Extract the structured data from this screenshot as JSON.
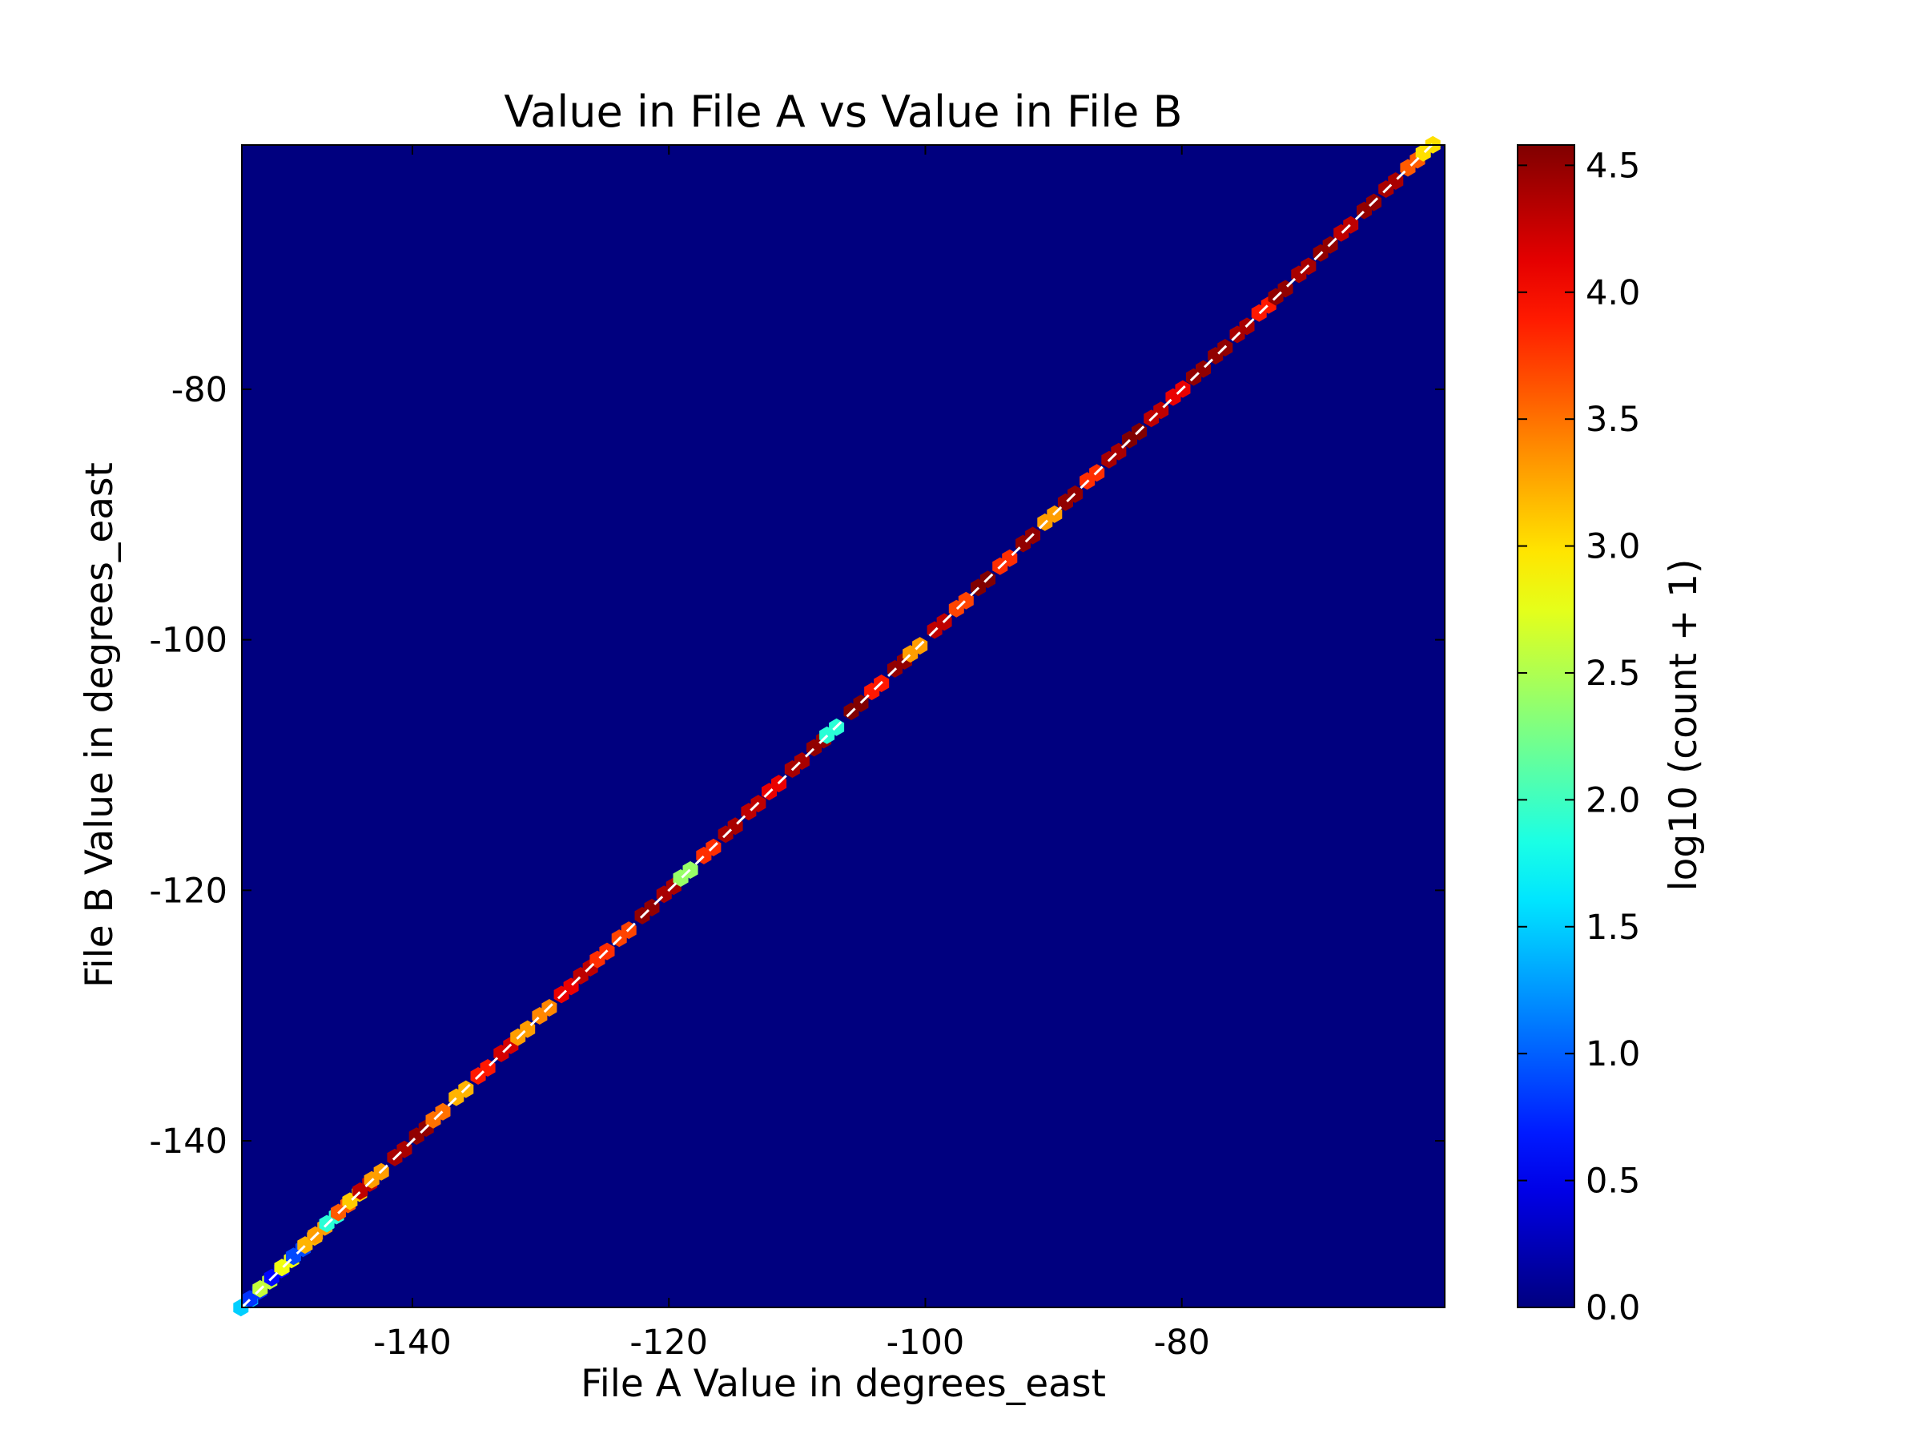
{
  "chart_data": {
    "type": "heatmap",
    "subtype": "hexbin",
    "title": "Value in File A vs Value in File B",
    "xlabel": "File A Value in degrees_east",
    "ylabel": "File B Value in degrees_east",
    "xlim": [
      -153.3,
      -59.5
    ],
    "ylim": [
      -153.3,
      -60.5
    ],
    "xticks": [
      -140,
      -120,
      -100,
      -80
    ],
    "yticks": [
      -140,
      -120,
      -100,
      -80
    ],
    "grid": false,
    "background_color": "#00007f",
    "colorbar": {
      "label": "log10 (count + 1)",
      "colormap": "jet",
      "range": [
        0.0,
        4.58
      ],
      "ticks": [
        "0.0",
        "0.5",
        "1.0",
        "1.5",
        "2.0",
        "2.5",
        "3.0",
        "3.5",
        "4.0",
        "4.5"
      ]
    },
    "reference_line": {
      "style": "dashed",
      "color": "#ffffff",
      "from": [
        -153.3,
        -153.3
      ],
      "to": [
        -60.3,
        -60.3
      ]
    },
    "diagonal_profile": [
      {
        "x": -153.0,
        "value": 1.5
      },
      {
        "x": -152.3,
        "value": 0.8
      },
      {
        "x": -151.5,
        "value": 2.6
      },
      {
        "x": -150.6,
        "value": 0.6
      },
      {
        "x": -149.8,
        "value": 2.8
      },
      {
        "x": -148.9,
        "value": 0.9
      },
      {
        "x": -148.0,
        "value": 3.2
      },
      {
        "x": -147.2,
        "value": 3.3
      },
      {
        "x": -146.3,
        "value": 1.9
      },
      {
        "x": -145.4,
        "value": 3.6
      },
      {
        "x": -144.5,
        "value": 3.1
      },
      {
        "x": -143.7,
        "value": 4.3
      },
      {
        "x": -142.8,
        "value": 3.3
      },
      {
        "x": -141.0,
        "value": 4.4
      },
      {
        "x": -139.3,
        "value": 4.5
      },
      {
        "x": -138.0,
        "value": 3.5
      },
      {
        "x": -136.2,
        "value": 3.2
      },
      {
        "x": -134.5,
        "value": 3.9
      },
      {
        "x": -132.7,
        "value": 4.2
      },
      {
        "x": -131.4,
        "value": 3.3
      },
      {
        "x": -129.7,
        "value": 3.4
      },
      {
        "x": -128.0,
        "value": 4.1
      },
      {
        "x": -126.5,
        "value": 4.3
      },
      {
        "x": -125.2,
        "value": 3.8
      },
      {
        "x": -123.5,
        "value": 3.7
      },
      {
        "x": -121.7,
        "value": 4.5
      },
      {
        "x": -120.0,
        "value": 4.4
      },
      {
        "x": -118.7,
        "value": 2.4
      },
      {
        "x": -116.9,
        "value": 3.8
      },
      {
        "x": -115.2,
        "value": 4.4
      },
      {
        "x": -113.4,
        "value": 4.3
      },
      {
        "x": -111.8,
        "value": 4.1
      },
      {
        "x": -110.0,
        "value": 4.4
      },
      {
        "x": -108.3,
        "value": 4.5
      },
      {
        "x": -107.3,
        "value": 1.9
      },
      {
        "x": -105.4,
        "value": 4.6
      },
      {
        "x": -103.8,
        "value": 3.9
      },
      {
        "x": -102.0,
        "value": 4.5
      },
      {
        "x": -100.8,
        "value": 3.3
      },
      {
        "x": -98.9,
        "value": 4.3
      },
      {
        "x": -97.2,
        "value": 3.7
      },
      {
        "x": -95.5,
        "value": 4.6
      },
      {
        "x": -93.8,
        "value": 3.8
      },
      {
        "x": -92.0,
        "value": 4.5
      },
      {
        "x": -90.3,
        "value": 3.3
      },
      {
        "x": -88.7,
        "value": 4.5
      },
      {
        "x": -87.0,
        "value": 3.8
      },
      {
        "x": -85.3,
        "value": 4.4
      },
      {
        "x": -83.7,
        "value": 4.6
      },
      {
        "x": -82.0,
        "value": 4.3
      },
      {
        "x": -80.3,
        "value": 4.1
      },
      {
        "x": -78.7,
        "value": 4.5
      },
      {
        "x": -77.0,
        "value": 4.5
      },
      {
        "x": -75.3,
        "value": 4.4
      },
      {
        "x": -73.6,
        "value": 3.9
      },
      {
        "x": -72.3,
        "value": 4.5
      },
      {
        "x": -70.5,
        "value": 4.4
      },
      {
        "x": -68.8,
        "value": 4.5
      },
      {
        "x": -67.2,
        "value": 4.3
      },
      {
        "x": -65.4,
        "value": 4.5
      },
      {
        "x": -63.7,
        "value": 4.4
      },
      {
        "x": -62.0,
        "value": 3.6
      },
      {
        "x": -60.8,
        "value": 3.0
      }
    ]
  }
}
